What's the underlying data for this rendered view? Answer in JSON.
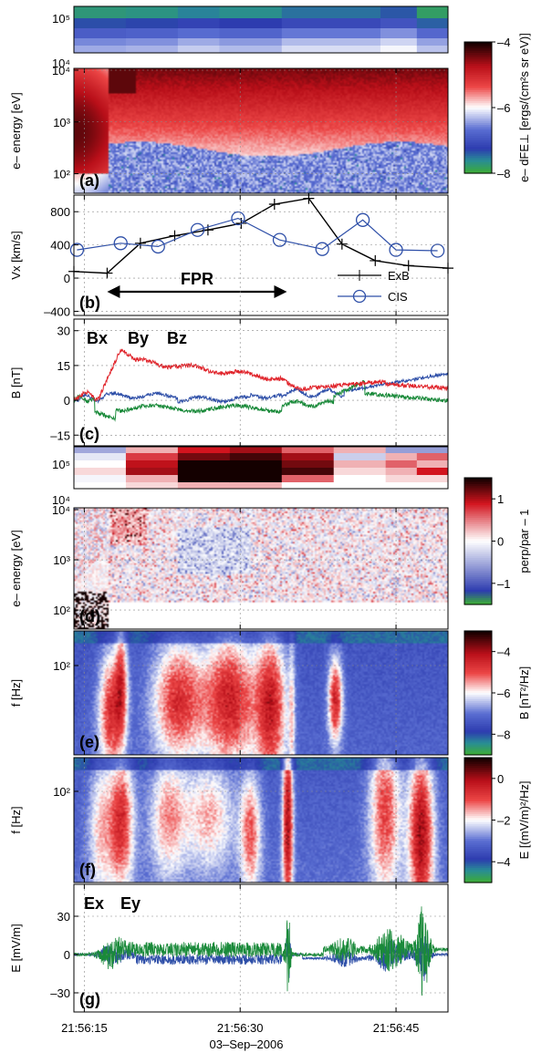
{
  "figure": {
    "date_label": "03–Sep–2006",
    "time_ticks": [
      "21:56:15",
      "21:56:30",
      "21:56:45"
    ],
    "time_tick_seconds": [
      15,
      30,
      45
    ],
    "time_range_seconds": [
      14,
      50
    ]
  },
  "colorbars": {
    "a": {
      "label": "e– dFE⊥ [ergs/(cm²s sr eV)]",
      "ticks": [
        "–4",
        "–6",
        "–8"
      ],
      "range": [
        -8,
        -4
      ]
    },
    "d": {
      "label": "perp/par – 1",
      "ticks": [
        "1",
        "0",
        "–1"
      ],
      "range": [
        -1.5,
        1.5
      ]
    },
    "e": {
      "label": "B [nT²/Hz]",
      "ticks": [
        "–4",
        "–6",
        "–8"
      ],
      "range": [
        -9,
        -3
      ]
    },
    "f": {
      "label": "E [(mV/m)²/Hz]",
      "ticks": [
        "0",
        "–2",
        "–4"
      ],
      "range": [
        -5,
        1
      ]
    }
  },
  "chart_data": [
    {
      "panel": "a",
      "type": "heatmap",
      "panel_label": "(a)",
      "ylabel": "e– energy [eV]",
      "yscale": "log",
      "ylim": [
        50,
        10000
      ],
      "upper_strip_ylim": [
        30000,
        200000
      ],
      "yticks": [
        "10⁴",
        "10³",
        "10²"
      ],
      "upper_strip_yticks": [
        "10⁵",
        "10⁴"
      ],
      "colorbar": "a"
    },
    {
      "panel": "b",
      "type": "line",
      "panel_label": "(b)",
      "ylabel": "Vx [km/s]",
      "ylim": [
        -450,
        1000
      ],
      "yticks": [
        800,
        400,
        0,
        -400
      ],
      "annotation": "FPR",
      "fpr_interval_seconds": [
        17.2,
        34.5
      ],
      "series": [
        {
          "name": "ExB",
          "color": "#000000",
          "marker": "plus",
          "x": [
            14,
            17.2,
            20.4,
            23.7,
            26.9,
            30.1,
            33.3,
            36.6,
            39.8,
            43.0,
            46.2,
            50
          ],
          "values": [
            80,
            60,
            420,
            510,
            580,
            660,
            890,
            960,
            410,
            210,
            150,
            120
          ]
        },
        {
          "name": "CIS",
          "color": "#2e4fa8",
          "marker": "circle",
          "x": [
            14.3,
            18.5,
            22.1,
            25.9,
            29.8,
            33.8,
            37.9,
            41.8,
            45.0,
            49.0
          ],
          "values": [
            340,
            420,
            380,
            580,
            720,
            460,
            350,
            700,
            340,
            330
          ]
        }
      ]
    },
    {
      "panel": "c",
      "type": "line",
      "panel_label": "(c)",
      "ylabel": "B [nT]",
      "ylim": [
        -20,
        35
      ],
      "yticks": [
        30,
        15,
        0,
        -15
      ],
      "series": [
        {
          "name": "Bx",
          "color": "#2e4fa8"
        },
        {
          "name": "By",
          "color": "#1a8a3a"
        },
        {
          "name": "Bz",
          "color": "#e0242b"
        }
      ]
    },
    {
      "panel": "d",
      "type": "heatmap",
      "panel_label": "(d)",
      "ylabel": "e– energy [eV]",
      "yscale": "log",
      "ylim": [
        50,
        10000
      ],
      "yticks": [
        "10⁴",
        "10³",
        "10²"
      ],
      "upper_strip_yticks": [
        "10⁵",
        "10⁴"
      ],
      "colorbar": "d"
    },
    {
      "panel": "e",
      "type": "heatmap",
      "panel_label": "(e)",
      "ylabel": "f [Hz]",
      "yscale": "log",
      "yticks": [
        "10²"
      ],
      "colorbar": "e"
    },
    {
      "panel": "f",
      "type": "heatmap",
      "panel_label": "(f)",
      "ylabel": "f [Hz]",
      "yscale": "log",
      "yticks": [
        "10²"
      ],
      "colorbar": "f"
    },
    {
      "panel": "g",
      "type": "line",
      "panel_label": "(g)",
      "ylabel": "E [mV/m]",
      "ylim": [
        -45,
        55
      ],
      "yticks": [
        30,
        0,
        -30
      ],
      "series": [
        {
          "name": "Ex",
          "color": "#2e4fa8"
        },
        {
          "name": "Ey",
          "color": "#1a8a3a"
        }
      ]
    }
  ]
}
